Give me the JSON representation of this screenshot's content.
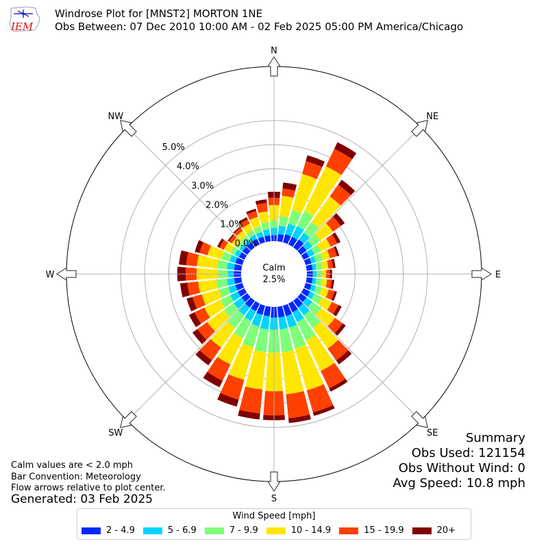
{
  "logo_text": "IEM",
  "header": {
    "title": "Windrose Plot for [MNST2] MORTON 1NE",
    "subtitle": "Obs Between: 07 Dec 2010 10:00 AM - 02 Feb 2025 05:00 PM America/Chicago"
  },
  "notes": {
    "calm_def": "Calm values are < 2.0 mph",
    "bar_convention": "Bar Convention: Meteorology",
    "flow_arrows": "Flow arrows relative to plot center.",
    "generated": "Generated: 03 Feb 2025"
  },
  "summary": {
    "heading": "Summary",
    "obs_used": "Obs Used: 121154",
    "obs_without_wind": "Obs Without Wind: 0",
    "avg_speed": "Avg Speed: 10.8 mph"
  },
  "chart_data": {
    "type": "windrose",
    "calm_label": "Calm",
    "calm_value": "2.5%",
    "radial_unit": "%",
    "radial_ticks": [
      "0.0%",
      "1.0%",
      "2.0%",
      "3.0%",
      "4.0%",
      "5.0%"
    ],
    "radial_range": [
      0,
      6.3
    ],
    "directions": [
      "N",
      "NE",
      "E",
      "SE",
      "S",
      "SW",
      "W",
      "NW"
    ],
    "direction_bins_deg": [
      0,
      10,
      20,
      30,
      40,
      50,
      60,
      70,
      80,
      90,
      100,
      110,
      120,
      130,
      140,
      150,
      160,
      170,
      180,
      190,
      200,
      210,
      220,
      230,
      240,
      250,
      260,
      270,
      280,
      290,
      300,
      310,
      320,
      330,
      340,
      350
    ],
    "legend_title": "Wind Speed [mph]",
    "bins": [
      {
        "label": "2 - 4.9",
        "color": "#0028ff"
      },
      {
        "label": "5 - 6.9",
        "color": "#00d4ff"
      },
      {
        "label": "7 - 9.9",
        "color": "#7dff7a"
      },
      {
        "label": "10 - 14.9",
        "color": "#ffe600"
      },
      {
        "label": "15 - 19.9",
        "color": "#ff4000"
      },
      {
        "label": "20+",
        "color": "#800000"
      }
    ],
    "cumulative_percent": [
      [
        0.25,
        0.55,
        0.85,
        1.5,
        1.8,
        2.05
      ],
      [
        0.3,
        0.65,
        1.05,
        1.9,
        2.2,
        2.45
      ],
      [
        0.35,
        0.8,
        1.4,
        2.95,
        3.5,
        3.75
      ],
      [
        0.35,
        0.85,
        1.55,
        3.6,
        4.4,
        4.7
      ],
      [
        0.4,
        0.75,
        1.3,
        2.6,
        3.2,
        3.45
      ],
      [
        0.3,
        0.6,
        1.0,
        1.65,
        2.05,
        2.25
      ],
      [
        0.25,
        0.5,
        0.8,
        1.25,
        1.55,
        1.7
      ],
      [
        0.25,
        0.45,
        0.75,
        1.05,
        1.35,
        1.45
      ],
      [
        0.25,
        0.4,
        0.65,
        0.9,
        1.1,
        1.2
      ],
      [
        0.25,
        0.4,
        0.6,
        0.8,
        0.95,
        1.05
      ],
      [
        0.25,
        0.4,
        0.65,
        0.85,
        1.05,
        1.15
      ],
      [
        0.25,
        0.45,
        0.7,
        1.0,
        1.25,
        1.35
      ],
      [
        0.3,
        0.5,
        0.85,
        1.3,
        1.6,
        1.75
      ],
      [
        0.3,
        0.6,
        1.05,
        1.75,
        2.15,
        2.3
      ],
      [
        0.35,
        0.75,
        1.4,
        2.45,
        3.05,
        3.25
      ],
      [
        0.4,
        0.85,
        1.7,
        3.1,
        3.9,
        4.05
      ],
      [
        0.45,
        0.95,
        1.85,
        3.65,
        4.6,
        4.75
      ],
      [
        0.45,
        0.95,
        1.9,
        3.65,
        4.65,
        4.85
      ],
      [
        0.45,
        0.95,
        1.9,
        3.5,
        4.5,
        4.7
      ],
      [
        0.4,
        0.95,
        1.9,
        3.45,
        4.45,
        4.7
      ],
      [
        0.4,
        0.9,
        1.8,
        3.2,
        4.05,
        4.35
      ],
      [
        0.35,
        0.8,
        1.6,
        2.8,
        3.55,
        3.85
      ],
      [
        0.35,
        0.75,
        1.4,
        2.4,
        3.05,
        3.3
      ],
      [
        0.3,
        0.7,
        1.2,
        2.05,
        2.55,
        2.8
      ],
      [
        0.3,
        0.65,
        1.1,
        1.85,
        2.3,
        2.55
      ],
      [
        0.3,
        0.6,
        1.0,
        1.75,
        2.15,
        2.4
      ],
      [
        0.3,
        0.6,
        1.05,
        1.8,
        2.25,
        2.55
      ],
      [
        0.3,
        0.55,
        0.95,
        1.85,
        2.3,
        2.65
      ],
      [
        0.3,
        0.6,
        1.0,
        1.85,
        2.3,
        2.6
      ],
      [
        0.3,
        0.55,
        0.9,
        1.5,
        1.85,
        2.05
      ],
      [
        0.25,
        0.45,
        0.65,
        0.95,
        1.15,
        1.25
      ],
      [
        0.25,
        0.4,
        0.55,
        0.8,
        0.95,
        1.0
      ],
      [
        0.25,
        0.4,
        0.6,
        0.85,
        1.0,
        1.05
      ],
      [
        0.25,
        0.45,
        0.65,
        0.95,
        1.15,
        1.25
      ],
      [
        0.25,
        0.45,
        0.7,
        1.1,
        1.35,
        1.45
      ],
      [
        0.25,
        0.5,
        0.8,
        1.25,
        1.6,
        1.75
      ]
    ]
  }
}
